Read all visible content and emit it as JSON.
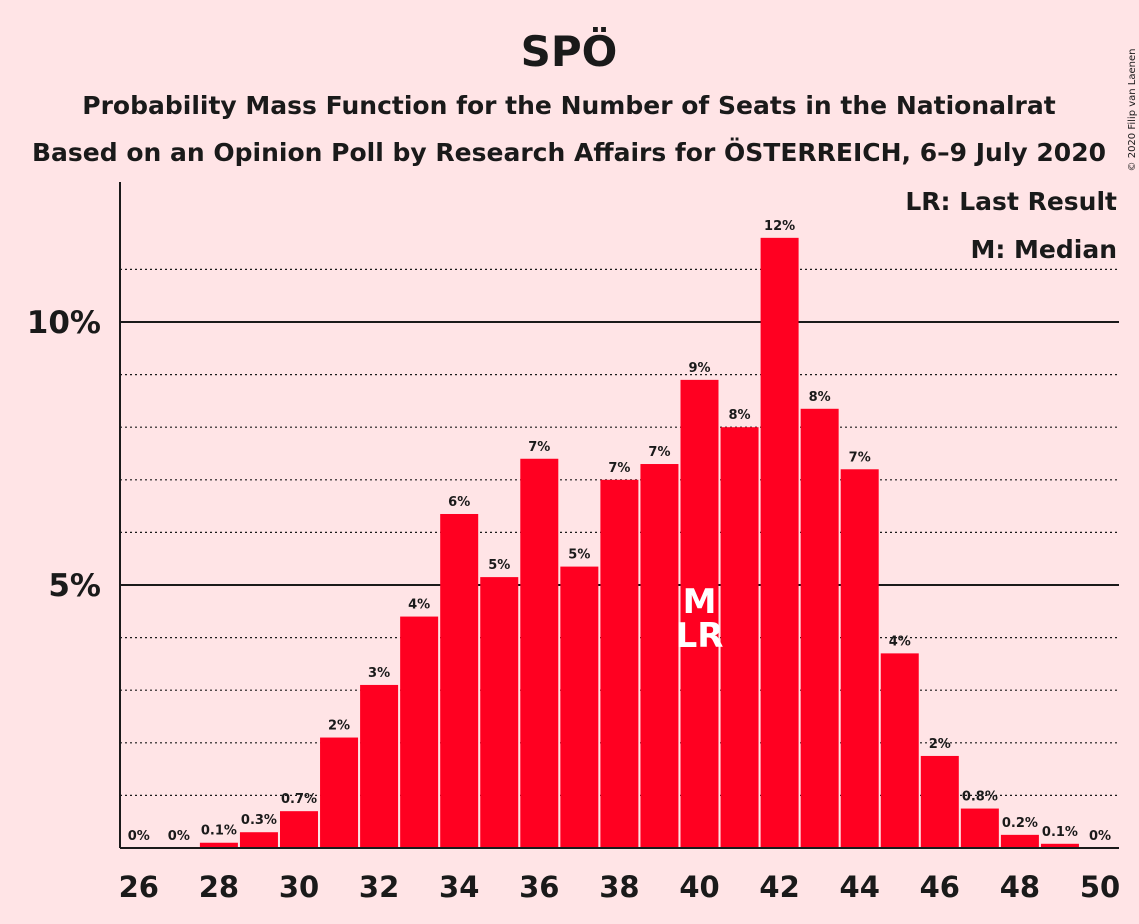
{
  "title": "SPÖ",
  "subtitle1": "Probability Mass Function for the Number of Seats in the Nationalrat",
  "subtitle2": "Based on an Opinion Poll by Research Affairs for ÖSTERREICH, 6–9 July 2020",
  "copyright": "© 2020 Filip van Laenen",
  "legend": {
    "last_result": "LR: Last Result",
    "median": "M: Median"
  },
  "colors": {
    "bar": "#ff0021",
    "background": "#ffe4e6",
    "text": "#1a1a1a"
  },
  "chart_data": {
    "type": "bar",
    "x": [
      26,
      27,
      28,
      29,
      30,
      31,
      32,
      33,
      34,
      35,
      36,
      37,
      38,
      39,
      40,
      41,
      42,
      43,
      44,
      45,
      46,
      47,
      48,
      49,
      50
    ],
    "values": [
      0,
      0,
      0.1,
      0.3,
      0.7,
      2.1,
      3.1,
      4.4,
      6.35,
      5.15,
      7.4,
      5.35,
      7.0,
      7.3,
      8.9,
      8.0,
      11.6,
      8.35,
      7.2,
      3.7,
      1.75,
      0.75,
      0.25,
      0.08,
      0
    ],
    "labels": [
      "0%",
      "0%",
      "0.1%",
      "0.3%",
      "0.7%",
      "2%",
      "3%",
      "4%",
      "6%",
      "5%",
      "7%",
      "5%",
      "7%",
      "7%",
      "9%",
      "8%",
      "12%",
      "8%",
      "7%",
      "4%",
      "2%",
      "0.8%",
      "0.2%",
      "0.1%",
      "0%"
    ],
    "xticks": [
      26,
      28,
      30,
      32,
      34,
      36,
      38,
      40,
      42,
      44,
      46,
      48,
      50
    ],
    "yticks": [
      {
        "value": 5,
        "label": "5%"
      },
      {
        "value": 10,
        "label": "10%"
      }
    ],
    "ylim": [
      0,
      12.7
    ],
    "median": 40,
    "median_label": "M",
    "last_result": 40,
    "last_result_label": "LR",
    "grid": "dotted every 1%, solid at 5% and 10%",
    "legend_position": "top-right"
  }
}
